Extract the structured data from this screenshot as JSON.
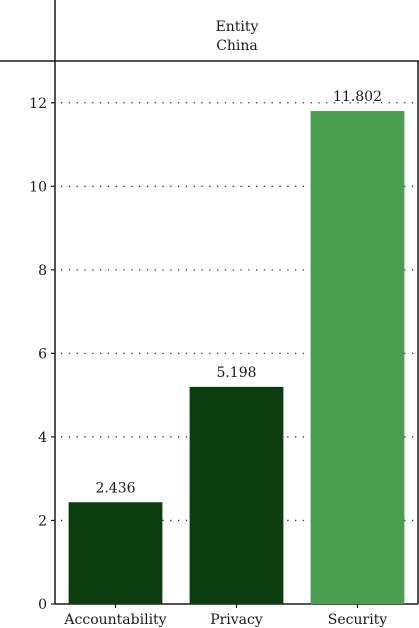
{
  "header": {
    "facet_variable": "Entity",
    "facet_value": "China"
  },
  "chart_data": {
    "type": "bar",
    "categories": [
      "Accountability",
      "Privacy",
      "Security"
    ],
    "values": [
      2.436,
      5.198,
      11.802
    ],
    "value_labels": [
      "2.436",
      "5.198",
      "11.802"
    ],
    "colors": [
      "#0b3d0f",
      "#0b3d0f",
      "#4a9e4e"
    ],
    "ylim": [
      0,
      13
    ],
    "yticks": [
      0,
      2,
      4,
      6,
      8,
      10,
      12
    ],
    "ytick_labels": [
      "0",
      "2",
      "4",
      "6",
      "8",
      "10",
      "12"
    ],
    "grid": "horizontal dotted",
    "title": "",
    "xlabel": "",
    "ylabel": ""
  }
}
